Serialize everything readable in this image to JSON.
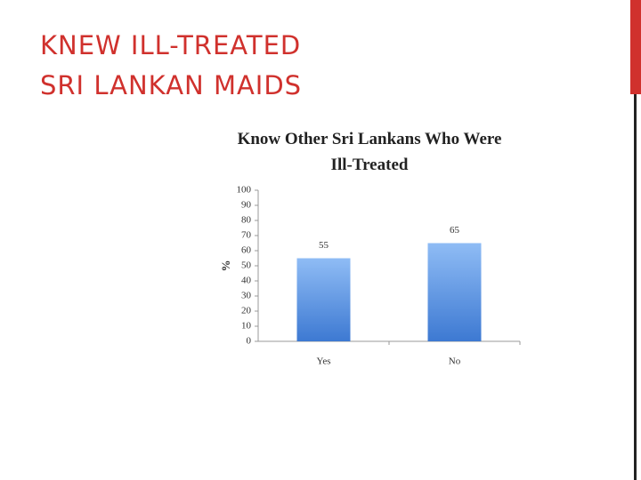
{
  "slide_title": [
    "KNEW ILL-TREATED",
    "SRI LANKAN MAIDS"
  ],
  "chart_data": {
    "type": "bar",
    "title": [
      "Know Other Sri Lankans Who Were",
      "Ill-Treated"
    ],
    "y_label": "%",
    "categories": [
      "Yes",
      "No"
    ],
    "values": [
      55,
      65
    ],
    "color": "#4a86d8",
    "ylim": [
      0,
      100
    ],
    "yticks": [
      0,
      10,
      20,
      30,
      40,
      50,
      60,
      70,
      80,
      90,
      100
    ],
    "grid": false,
    "legend": false
  }
}
